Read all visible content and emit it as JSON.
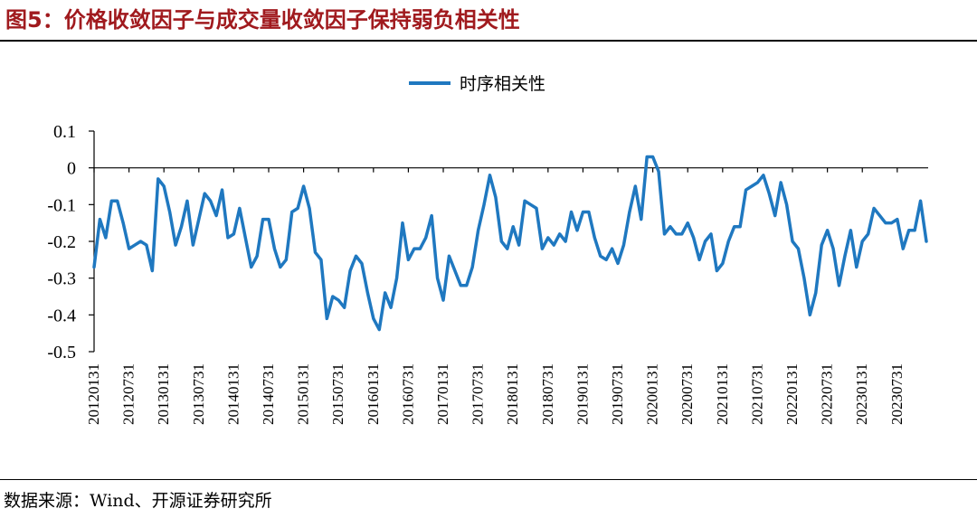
{
  "figure": {
    "title": "图5：价格收敛因子与成交量收敛因子保持弱负相关性",
    "source": "数据来源：Wind、开源证券研究所"
  },
  "colors": {
    "title": "#a01a1e",
    "series": "#1f78c0",
    "axis": "#000000"
  },
  "chart_data": {
    "type": "line",
    "legend_position": "top-center",
    "grid": false,
    "ylim": [
      -0.5,
      0.1
    ],
    "yticks": [
      0.1,
      0,
      -0.1,
      -0.2,
      -0.3,
      -0.4,
      -0.5
    ],
    "ytick_labels": [
      "0.1",
      "0",
      "-0.1",
      "-0.2",
      "-0.3",
      "-0.4",
      "-0.5"
    ],
    "xtick_labels": [
      "20120131",
      "20120731",
      "20130131",
      "20130731",
      "20140131",
      "20140731",
      "20150131",
      "20150731",
      "20160131",
      "20160731",
      "20170131",
      "20170731",
      "20180131",
      "20180731",
      "20190131",
      "20190731",
      "20200131",
      "20200731",
      "20210131",
      "20210731",
      "20220131",
      "20220731",
      "20230131",
      "20230731"
    ],
    "xtick_every_n_points": 6,
    "series": [
      {
        "name": "时序相关性",
        "values": [
          -0.27,
          -0.14,
          -0.19,
          -0.09,
          -0.09,
          -0.15,
          -0.22,
          -0.21,
          -0.2,
          -0.21,
          -0.28,
          -0.03,
          -0.05,
          -0.12,
          -0.21,
          -0.16,
          -0.09,
          -0.21,
          -0.14,
          -0.07,
          -0.09,
          -0.13,
          -0.06,
          -0.19,
          -0.18,
          -0.11,
          -0.19,
          -0.27,
          -0.24,
          -0.14,
          -0.14,
          -0.22,
          -0.27,
          -0.25,
          -0.12,
          -0.11,
          -0.05,
          -0.11,
          -0.23,
          -0.25,
          -0.41,
          -0.35,
          -0.36,
          -0.38,
          -0.28,
          -0.24,
          -0.26,
          -0.34,
          -0.41,
          -0.44,
          -0.34,
          -0.38,
          -0.3,
          -0.15,
          -0.25,
          -0.22,
          -0.22,
          -0.19,
          -0.13,
          -0.3,
          -0.36,
          -0.24,
          -0.28,
          -0.32,
          -0.32,
          -0.27,
          -0.17,
          -0.1,
          -0.02,
          -0.08,
          -0.2,
          -0.22,
          -0.16,
          -0.21,
          -0.09,
          -0.1,
          -0.11,
          -0.22,
          -0.19,
          -0.21,
          -0.18,
          -0.2,
          -0.12,
          -0.17,
          -0.12,
          -0.12,
          -0.19,
          -0.24,
          -0.25,
          -0.22,
          -0.26,
          -0.21,
          -0.12,
          -0.05,
          -0.14,
          0.03,
          0.03,
          -0.01,
          -0.18,
          -0.16,
          -0.18,
          -0.18,
          -0.15,
          -0.19,
          -0.25,
          -0.2,
          -0.18,
          -0.28,
          -0.26,
          -0.2,
          -0.16,
          -0.16,
          -0.06,
          -0.05,
          -0.04,
          -0.02,
          -0.07,
          -0.13,
          -0.04,
          -0.1,
          -0.2,
          -0.22,
          -0.3,
          -0.4,
          -0.34,
          -0.21,
          -0.17,
          -0.22,
          -0.32,
          -0.24,
          -0.17,
          -0.27,
          -0.2,
          -0.18,
          -0.11,
          -0.13,
          -0.15,
          -0.15,
          -0.14,
          -0.22,
          -0.17,
          -0.17,
          -0.09,
          -0.2
        ]
      }
    ]
  }
}
